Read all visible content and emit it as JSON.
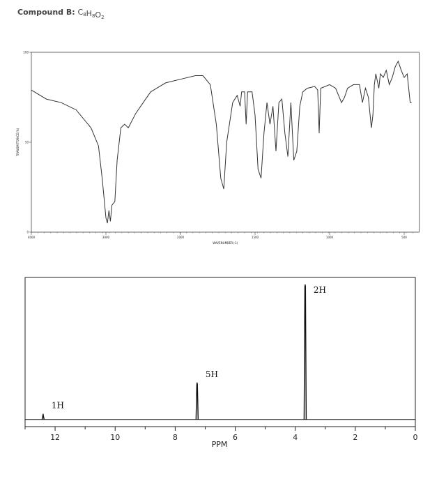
{
  "heading": {
    "label": "Compound B:",
    "formula": [
      {
        "el": "C",
        "n": "8"
      },
      {
        "el": "H",
        "n": "8"
      },
      {
        "el": "O",
        "n": "2"
      }
    ]
  },
  "chart_data": [
    {
      "type": "line",
      "xlabel": "WAVENUMBER(-1)",
      "ylabel": "TRANSMITTANCE(%)",
      "color": "#333333",
      "xlim": [
        4000,
        400
      ],
      "xticks": [
        4000,
        3000,
        2000,
        1500,
        1000,
        500
      ],
      "ylim": [
        0,
        100
      ],
      "yticks": [
        0,
        50,
        100
      ],
      "x": [
        4000,
        3800,
        3600,
        3400,
        3200,
        3100,
        3050,
        3000,
        2980,
        2960,
        2940,
        2920,
        2880,
        2850,
        2800,
        2750,
        2700,
        2600,
        2500,
        2400,
        2200,
        2000,
        1900,
        1850,
        1800,
        1760,
        1730,
        1710,
        1690,
        1650,
        1620,
        1600,
        1590,
        1570,
        1560,
        1550,
        1520,
        1500,
        1480,
        1460,
        1440,
        1420,
        1400,
        1380,
        1360,
        1340,
        1320,
        1300,
        1280,
        1260,
        1240,
        1220,
        1200,
        1180,
        1150,
        1100,
        1080,
        1070,
        1060,
        1000,
        960,
        920,
        900,
        880,
        840,
        800,
        780,
        760,
        740,
        720,
        710,
        700,
        690,
        670,
        660,
        640,
        620,
        600,
        580,
        560,
        540,
        520,
        500,
        480,
        460,
        450
      ],
      "values": [
        79,
        74,
        72,
        68,
        58,
        48,
        30,
        8,
        5,
        12,
        6,
        15,
        17,
        40,
        58,
        60,
        58,
        66,
        72,
        78,
        83,
        85,
        87,
        87,
        82,
        60,
        30,
        24,
        50,
        72,
        76,
        70,
        78,
        78,
        60,
        78,
        78,
        65,
        35,
        30,
        55,
        72,
        60,
        70,
        45,
        72,
        74,
        55,
        42,
        72,
        40,
        45,
        70,
        78,
        80,
        81,
        79,
        55,
        80,
        82,
        80,
        72,
        75,
        80,
        82,
        82,
        72,
        80,
        75,
        58,
        65,
        82,
        88,
        80,
        88,
        86,
        90,
        82,
        86,
        92,
        95,
        90,
        86,
        88,
        72,
        72
      ]
    },
    {
      "type": "nmr",
      "xlabel": "PPM",
      "color": "#111111",
      "xlim": [
        13,
        0
      ],
      "xticks": [
        12,
        10,
        8,
        6,
        4,
        2,
        0
      ],
      "xminorticks": [
        13,
        11,
        9,
        7,
        5,
        3,
        1
      ],
      "ylim": [
        -5,
        100
      ],
      "x": [
        12.4,
        7.27,
        3.67
      ],
      "values": [
        4,
        26,
        95
      ],
      "annotations": [
        "1H",
        "5H",
        "2H"
      ]
    }
  ]
}
